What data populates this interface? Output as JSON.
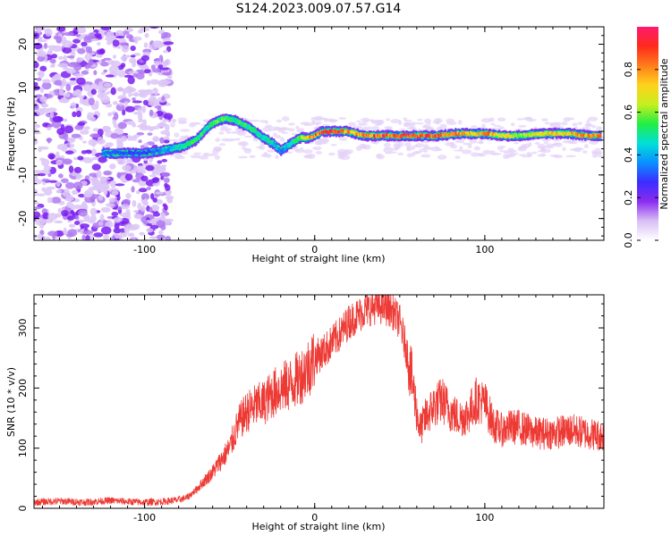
{
  "title": "S124.2023.009.07.57.G14",
  "colors": {
    "snr_line": "#ee3a35",
    "background": "#ffffff",
    "frame": "#000000"
  },
  "chart_data": [
    {
      "type": "heatmap",
      "title": "S124.2023.009.07.57.G14",
      "xlabel": "Height of straight line (km)",
      "ylabel": "Frequency (Hz)",
      "xlim": [
        -165,
        170
      ],
      "ylim": [
        -25,
        24
      ],
      "x_ticks": [
        -100,
        0,
        100
      ],
      "y_ticks": [
        -20,
        -10,
        0,
        10,
        20
      ],
      "colorbar": {
        "label": "Normalized spectral amplitude",
        "range": [
          0,
          1
        ],
        "ticks": [
          "0.0",
          "0.2",
          "0.4",
          "0.6",
          "0.8"
        ],
        "colormap": [
          "#ffffff",
          "#d8bff5",
          "#8c2cf0",
          "#3b2dff",
          "#0a90ff",
          "#00e0d8",
          "#22ee44",
          "#c6ef1e",
          "#ffd21c",
          "#ff7d1c",
          "#ff2a1c",
          "#ff1a6e"
        ]
      },
      "ridge": {
        "note_x": [
          -125,
          -112,
          -100,
          -92,
          -85,
          -78,
          -70,
          -63,
          -57,
          -52,
          -47,
          -42,
          -37,
          -32,
          -28,
          -24,
          -20,
          -17,
          -13,
          -9,
          -5,
          0,
          4,
          8,
          12,
          18,
          24,
          30,
          40,
          55,
          70,
          85,
          95,
          100,
          110,
          120,
          135,
          150,
          160,
          168
        ],
        "note_y": [
          -5,
          -5,
          -5,
          -4.5,
          -4,
          -3.5,
          -2,
          1,
          2.5,
          3,
          2.5,
          1.5,
          0.5,
          -1,
          -2,
          -3,
          -4.5,
          -3.5,
          -2.5,
          -1.5,
          -1.5,
          -1,
          0,
          0,
          0,
          0,
          -0.5,
          -1,
          -1,
          -1,
          -1,
          -0.5,
          -0.5,
          -0.5,
          -1,
          -1,
          -0.5,
          -0.5,
          -1,
          -1
        ],
        "amplitude": [
          0.35,
          0.3,
          0.3,
          0.35,
          0.4,
          0.5,
          0.55,
          0.5,
          0.6,
          0.55,
          0.5,
          0.55,
          0.5,
          0.45,
          0.5,
          0.45,
          0.35,
          0.45,
          0.5,
          0.6,
          0.7,
          0.85,
          0.9,
          0.95,
          0.95,
          0.85,
          0.8,
          0.85,
          0.9,
          0.9,
          0.88,
          0.8,
          0.75,
          0.85,
          0.7,
          0.65,
          0.72,
          0.75,
          0.8,
          0.85
        ]
      }
    },
    {
      "type": "line",
      "xlabel": "Height of straight line (km)",
      "ylabel": "SNR (10 * v/v)",
      "xlim": [
        -165,
        170
      ],
      "ylim": [
        0,
        355
      ],
      "x_ticks": [
        -100,
        0,
        100
      ],
      "y_ticks": [
        0,
        100,
        200,
        300
      ],
      "series": [
        {
          "x": [
            -165,
            -150,
            -135,
            -120,
            -110,
            -100,
            -90,
            -80,
            -75,
            -70,
            -65,
            -60,
            -55,
            -50,
            -45,
            -40,
            -35,
            -30,
            -25,
            -20,
            -15,
            -10,
            -5,
            0,
            5,
            10,
            15,
            20,
            25,
            30,
            35,
            40,
            45,
            50,
            55,
            58,
            60,
            62,
            65,
            70,
            75,
            80,
            85,
            90,
            95,
            100,
            105,
            110,
            115,
            120,
            125,
            130,
            140,
            150,
            160,
            170
          ],
          "y": [
            10,
            12,
            10,
            13,
            11,
            10,
            11,
            14,
            18,
            30,
            45,
            60,
            80,
            100,
            140,
            160,
            170,
            175,
            190,
            200,
            205,
            215,
            230,
            250,
            260,
            275,
            290,
            310,
            320,
            330,
            335,
            335,
            330,
            310,
            250,
            200,
            160,
            130,
            150,
            170,
            180,
            160,
            150,
            155,
            180,
            175,
            140,
            130,
            135,
            135,
            130,
            125,
            125,
            130,
            125,
            120
          ]
        }
      ]
    }
  ]
}
